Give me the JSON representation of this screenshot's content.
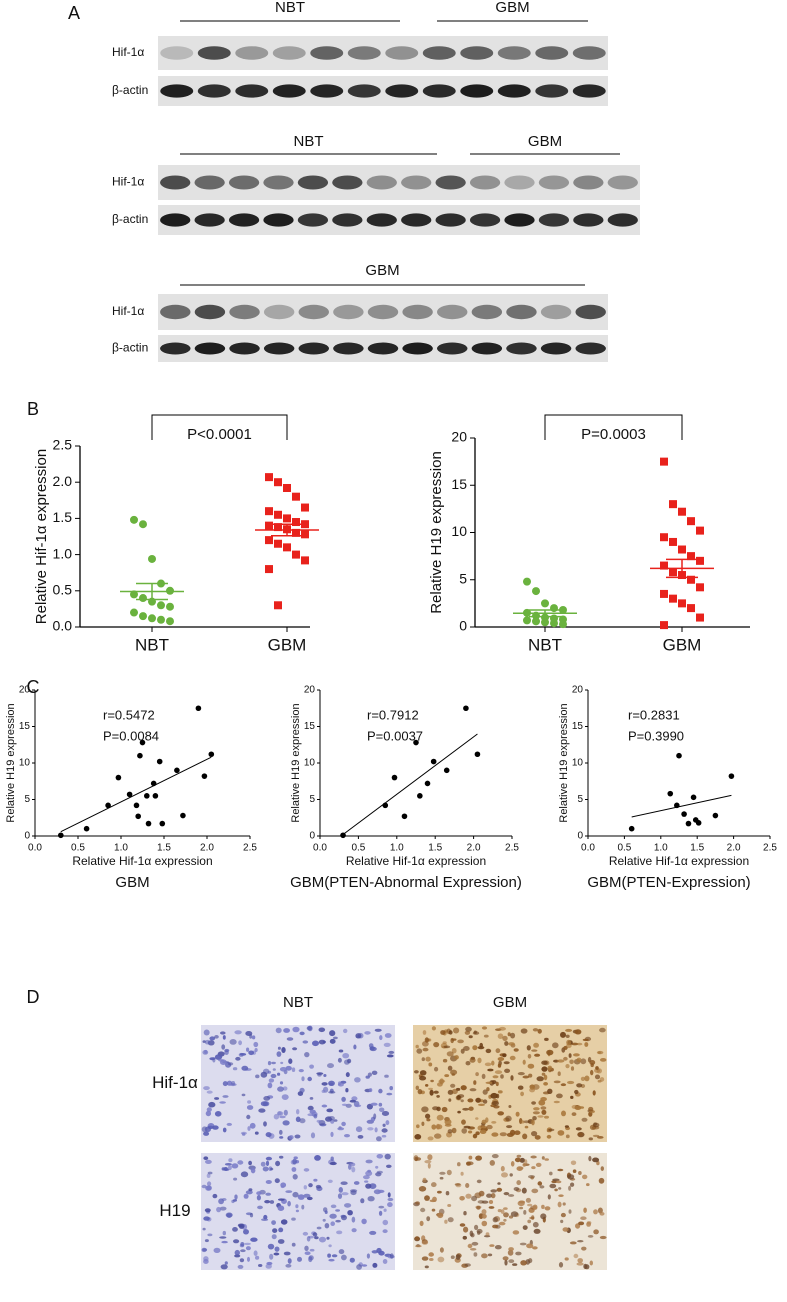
{
  "panel_labels": [
    "A",
    "B",
    "C",
    "D"
  ],
  "blots": [
    {
      "groups": [
        "NBT",
        "GBM"
      ],
      "rows": [
        "Hif-1α",
        "β-actin"
      ]
    },
    {
      "groups": [
        "NBT",
        "GBM"
      ],
      "rows": [
        "Hif-1α",
        "β-actin"
      ]
    },
    {
      "groups": [
        "GBM"
      ],
      "rows": [
        "Hif-1α",
        "β-actin"
      ]
    }
  ],
  "chart_data": [
    {
      "type": "dot",
      "ylabel": "Relative Hif-1α expression",
      "categories": [
        "NBT",
        "GBM"
      ],
      "ylim": [
        0,
        2.5
      ],
      "yticks": [
        {
          "value": 0,
          "label": "0.0"
        },
        0.5,
        {
          "value": 1,
          "label": "1.0"
        },
        1.5,
        {
          "value": 2,
          "label": "2.0"
        },
        2.5
      ],
      "annotation": "P<0.0001",
      "groups": [
        {
          "color": "#6ab23e",
          "marker": "circle",
          "values": [
            1.48,
            1.42,
            0.94,
            0.6,
            0.5,
            0.45,
            0.4,
            0.35,
            0.3,
            0.28,
            0.2,
            0.15,
            0.12,
            0.1,
            0.08
          ],
          "mean": 0.49,
          "sem": 0.11
        },
        {
          "color": "#e8221c",
          "marker": "square",
          "values": [
            2.07,
            2.0,
            1.92,
            1.8,
            1.65,
            1.6,
            1.55,
            1.5,
            1.45,
            1.42,
            1.4,
            1.38,
            1.35,
            1.3,
            1.28,
            1.2,
            1.15,
            1.1,
            1.0,
            0.92,
            0.8,
            0.3
          ],
          "mean": 1.34,
          "sem": 0.08
        }
      ]
    },
    {
      "type": "dot",
      "ylabel": "Relative H19 expression",
      "categories": [
        "NBT",
        "GBM"
      ],
      "ylim": [
        0,
        20
      ],
      "yticks": [
        0,
        5,
        10,
        15,
        20
      ],
      "annotation": "P=0.0003",
      "groups": [
        {
          "color": "#6ab23e",
          "marker": "circle",
          "values": [
            4.8,
            3.8,
            2.5,
            2,
            1.8,
            1.5,
            1.2,
            1,
            0.9,
            0.8,
            0.7,
            0.6,
            0.5,
            0.4,
            0.3
          ],
          "mean": 1.45,
          "sem": 0.35
        },
        {
          "color": "#e8221c",
          "marker": "square",
          "values": [
            17.5,
            13,
            12.2,
            11.2,
            10.2,
            9.5,
            9,
            8.2,
            7.5,
            7,
            6.5,
            5.8,
            5.5,
            5,
            4.2,
            3.5,
            3,
            2.5,
            2,
            1,
            0.2
          ],
          "mean": 6.2,
          "sem": 0.95
        }
      ]
    },
    {
      "type": "scatter",
      "title": "GBM",
      "xlabel": "Relative Hif-1α expression",
      "ylabel": "Relative H19 expression",
      "annotations": [
        "r=0.5472",
        "P=0.0084"
      ],
      "fit": "linear",
      "color": "#000000",
      "xlim": [
        0,
        2.5
      ],
      "xticks": [
        {
          "value": 0,
          "label": "0.0"
        },
        0.5,
        {
          "value": 1,
          "label": "1.0"
        },
        1.5,
        {
          "value": 2,
          "label": "2.0"
        },
        2.5
      ],
      "ylim": [
        0,
        20
      ],
      "yticks": [
        0,
        5,
        10,
        15,
        20
      ],
      "x": [
        0.3,
        0.6,
        0.85,
        0.97,
        1.1,
        1.18,
        1.22,
        1.25,
        1.3,
        1.32,
        1.38,
        1.4,
        1.45,
        1.48,
        1.65,
        1.72,
        1.9,
        1.97,
        2.05,
        1.2
      ],
      "values": [
        0.1,
        1,
        4.2,
        8,
        5.7,
        4.2,
        11,
        12.8,
        5.5,
        1.7,
        7.2,
        5.5,
        10.2,
        1.7,
        9,
        2.8,
        17.5,
        8.2,
        11.2,
        2.7
      ]
    },
    {
      "type": "scatter",
      "title": "GBM(PTEN-Abnormal Expression)",
      "xlabel": "Relative Hif-1α expression",
      "ylabel": "Relative H19 expression",
      "annotations": [
        "r=0.7912",
        "P=0.0037"
      ],
      "fit": "linear",
      "color": "#000000",
      "xlim": [
        0,
        2.5
      ],
      "xticks": [
        {
          "value": 0,
          "label": "0.0"
        },
        0.5,
        {
          "value": 1,
          "label": "1.0"
        },
        1.5,
        {
          "value": 2,
          "label": "2.0"
        },
        2.5
      ],
      "ylim": [
        0,
        20
      ],
      "yticks": [
        0,
        5,
        10,
        15,
        20
      ],
      "x": [
        0.3,
        0.85,
        0.97,
        1.1,
        1.25,
        1.3,
        1.4,
        1.48,
        1.65,
        1.9,
        2.05
      ],
      "values": [
        0.1,
        4.2,
        8,
        2.7,
        12.8,
        5.5,
        7.2,
        10.2,
        9,
        17.5,
        11.2
      ]
    },
    {
      "type": "scatter",
      "title": "GBM(PTEN-Expression)",
      "xlabel": "Relative Hif-1α expression",
      "ylabel": "Relative H19 expression",
      "annotations": [
        "r=0.2831",
        "P=0.3990"
      ],
      "fit": "linear",
      "color": "#000000",
      "xlim": [
        0,
        2.5
      ],
      "xticks": [
        {
          "value": 0,
          "label": "0.0"
        },
        0.5,
        {
          "value": 1,
          "label": "1.0"
        },
        1.5,
        {
          "value": 2,
          "label": "2.0"
        },
        2.5
      ],
      "ylim": [
        0,
        20
      ],
      "yticks": [
        0,
        5,
        10,
        15,
        20
      ],
      "x": [
        0.6,
        1.13,
        1.22,
        1.25,
        1.32,
        1.38,
        1.45,
        1.48,
        1.52,
        1.75,
        1.97
      ],
      "values": [
        1,
        5.8,
        4.2,
        11,
        3,
        1.7,
        5.3,
        2.2,
        1.8,
        2.8,
        8.2
      ]
    }
  ],
  "ihc": {
    "columns": [
      "NBT",
      "GBM"
    ],
    "rows": [
      "Hif-1α",
      "H19"
    ]
  }
}
